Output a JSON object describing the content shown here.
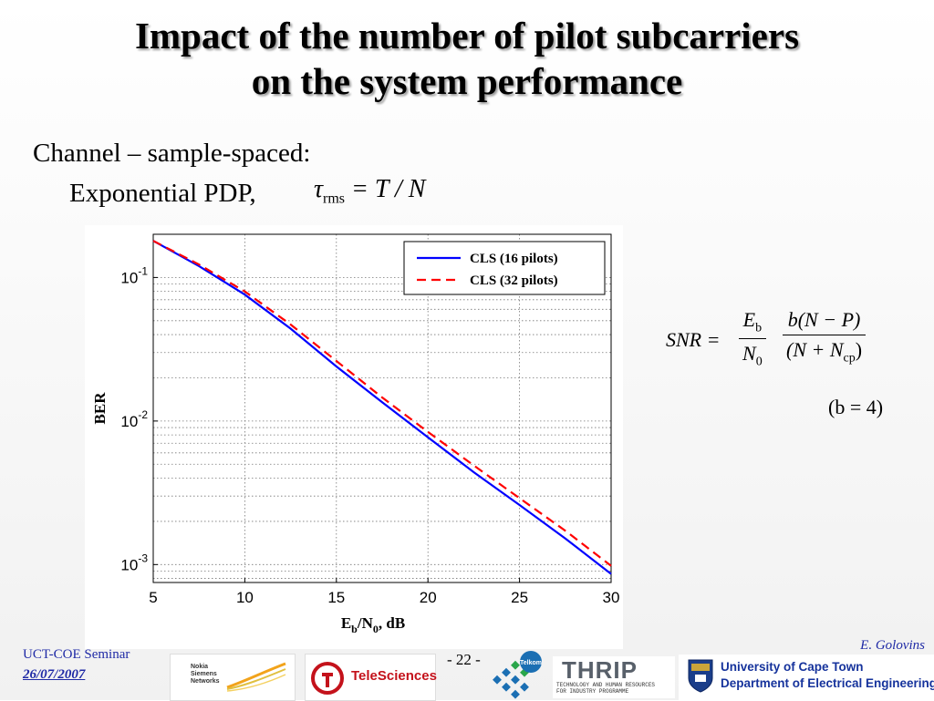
{
  "slide": {
    "title_line1": "Impact of the number of pilot subcarriers",
    "title_line2": "on the system performance",
    "bullet1": "Channel – sample-spaced:",
    "bullet2": "Exponential PDP,",
    "tau_formula": {
      "symbol": "τ",
      "sub": "rms",
      "rhs": " = T / N"
    },
    "snr_formula": {
      "lhs": "SNR =",
      "frac1_num": "E",
      "frac1_num_sub": "b",
      "frac1_den": "N",
      "frac1_den_sub": "0",
      "frac2_num": "b(N − P)",
      "frac2_den_pre": "(N + N",
      "frac2_den_sub": "cp",
      "frac2_den_post": ")"
    },
    "b_condition": "(b = 4)"
  },
  "footer": {
    "seminar": "UCT-COE Seminar",
    "date": "26/07/2007",
    "page": "- 22 -",
    "author": "E. Golovins",
    "logos": {
      "nsn": "Nokia Siemens Networks",
      "telesciences": "TeleSciences",
      "telkom": "Telkom",
      "thrip": "THRIP",
      "thrip_sub1": "TECHNOLOGY AND HUMAN RESOURCES",
      "thrip_sub2": "FOR INDUSTRY PROGRAMME",
      "uct_line1": "University of Cape Town",
      "uct_line2": "Department of Electrical Engineering"
    }
  },
  "chart_data": {
    "type": "line",
    "xlabel": "E_b/N_0, dB",
    "ylabel": "BER",
    "xlim": [
      5,
      30
    ],
    "ylim": [
      0.00075,
      0.2
    ],
    "yscale": "log",
    "grid": true,
    "legend_position": "top-right",
    "x_ticks": [
      5,
      10,
      15,
      20,
      25,
      30
    ],
    "y_ticks": [
      0.001,
      0.01,
      0.1
    ],
    "y_tick_labels": [
      "10",
      "10",
      "10"
    ],
    "y_tick_exponents": [
      "-3",
      "-2",
      "-1"
    ],
    "series": [
      {
        "name": "CLS (16 pilots)",
        "color": "#0000ff",
        "dash": "solid",
        "x": [
          5,
          7.5,
          10,
          12.5,
          15,
          17.5,
          20,
          22.5,
          25,
          27.5,
          30
        ],
        "y": [
          0.18,
          0.12,
          0.076,
          0.044,
          0.024,
          0.0135,
          0.0077,
          0.0044,
          0.0026,
          0.00152,
          0.00086
        ]
      },
      {
        "name": "CLS (32 pilots)",
        "color": "#ff0000",
        "dash": "dashed",
        "x": [
          5,
          7.5,
          10,
          12.5,
          15,
          17.5,
          20,
          22.5,
          25,
          27.5,
          30
        ],
        "y": [
          0.18,
          0.123,
          0.08,
          0.047,
          0.0262,
          0.0146,
          0.0084,
          0.0049,
          0.0029,
          0.00172,
          0.00098
        ]
      }
    ]
  }
}
